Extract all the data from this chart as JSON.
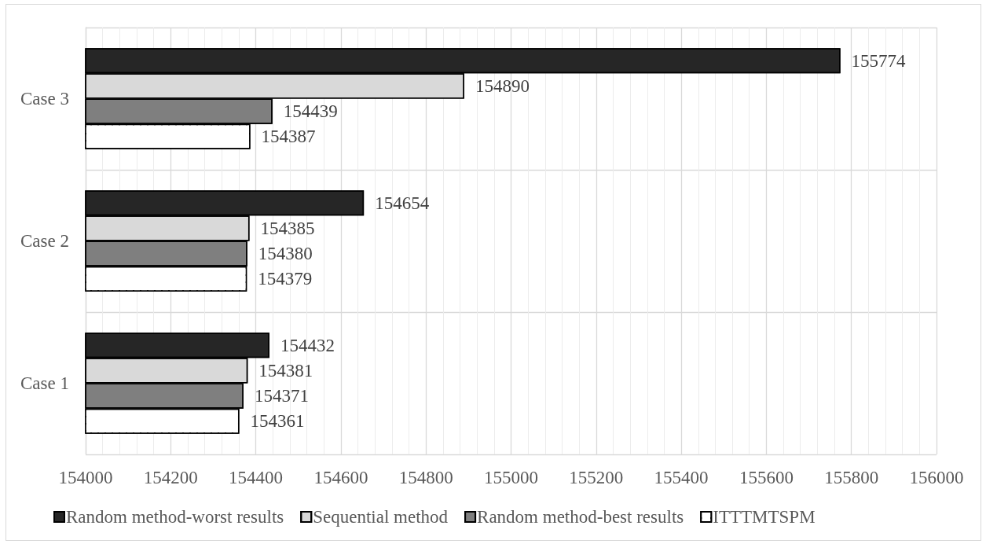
{
  "chart_data": {
    "type": "bar",
    "orientation": "horizontal",
    "categories": [
      "Case 3",
      "Case 2",
      "Case 1"
    ],
    "series": [
      {
        "name": "Random method-worst results",
        "color": "#262626",
        "values": [
          155774,
          154654,
          154432
        ]
      },
      {
        "name": "Sequential method",
        "color": "#d9d9d9",
        "values": [
          154890,
          154385,
          154381
        ]
      },
      {
        "name": "Random method-best results",
        "color": "#7f7f7f",
        "values": [
          154439,
          154380,
          154371
        ]
      },
      {
        "name": "ITTTMTSPM",
        "color": "#ffffff",
        "values": [
          154387,
          154379,
          154361
        ]
      }
    ],
    "xlim": [
      154000,
      156000
    ],
    "xticks": [
      154000,
      154200,
      154400,
      154600,
      154800,
      155000,
      155200,
      155400,
      155600,
      155800,
      156000
    ],
    "grid": true,
    "legend": "bottom",
    "data_labels": true
  }
}
